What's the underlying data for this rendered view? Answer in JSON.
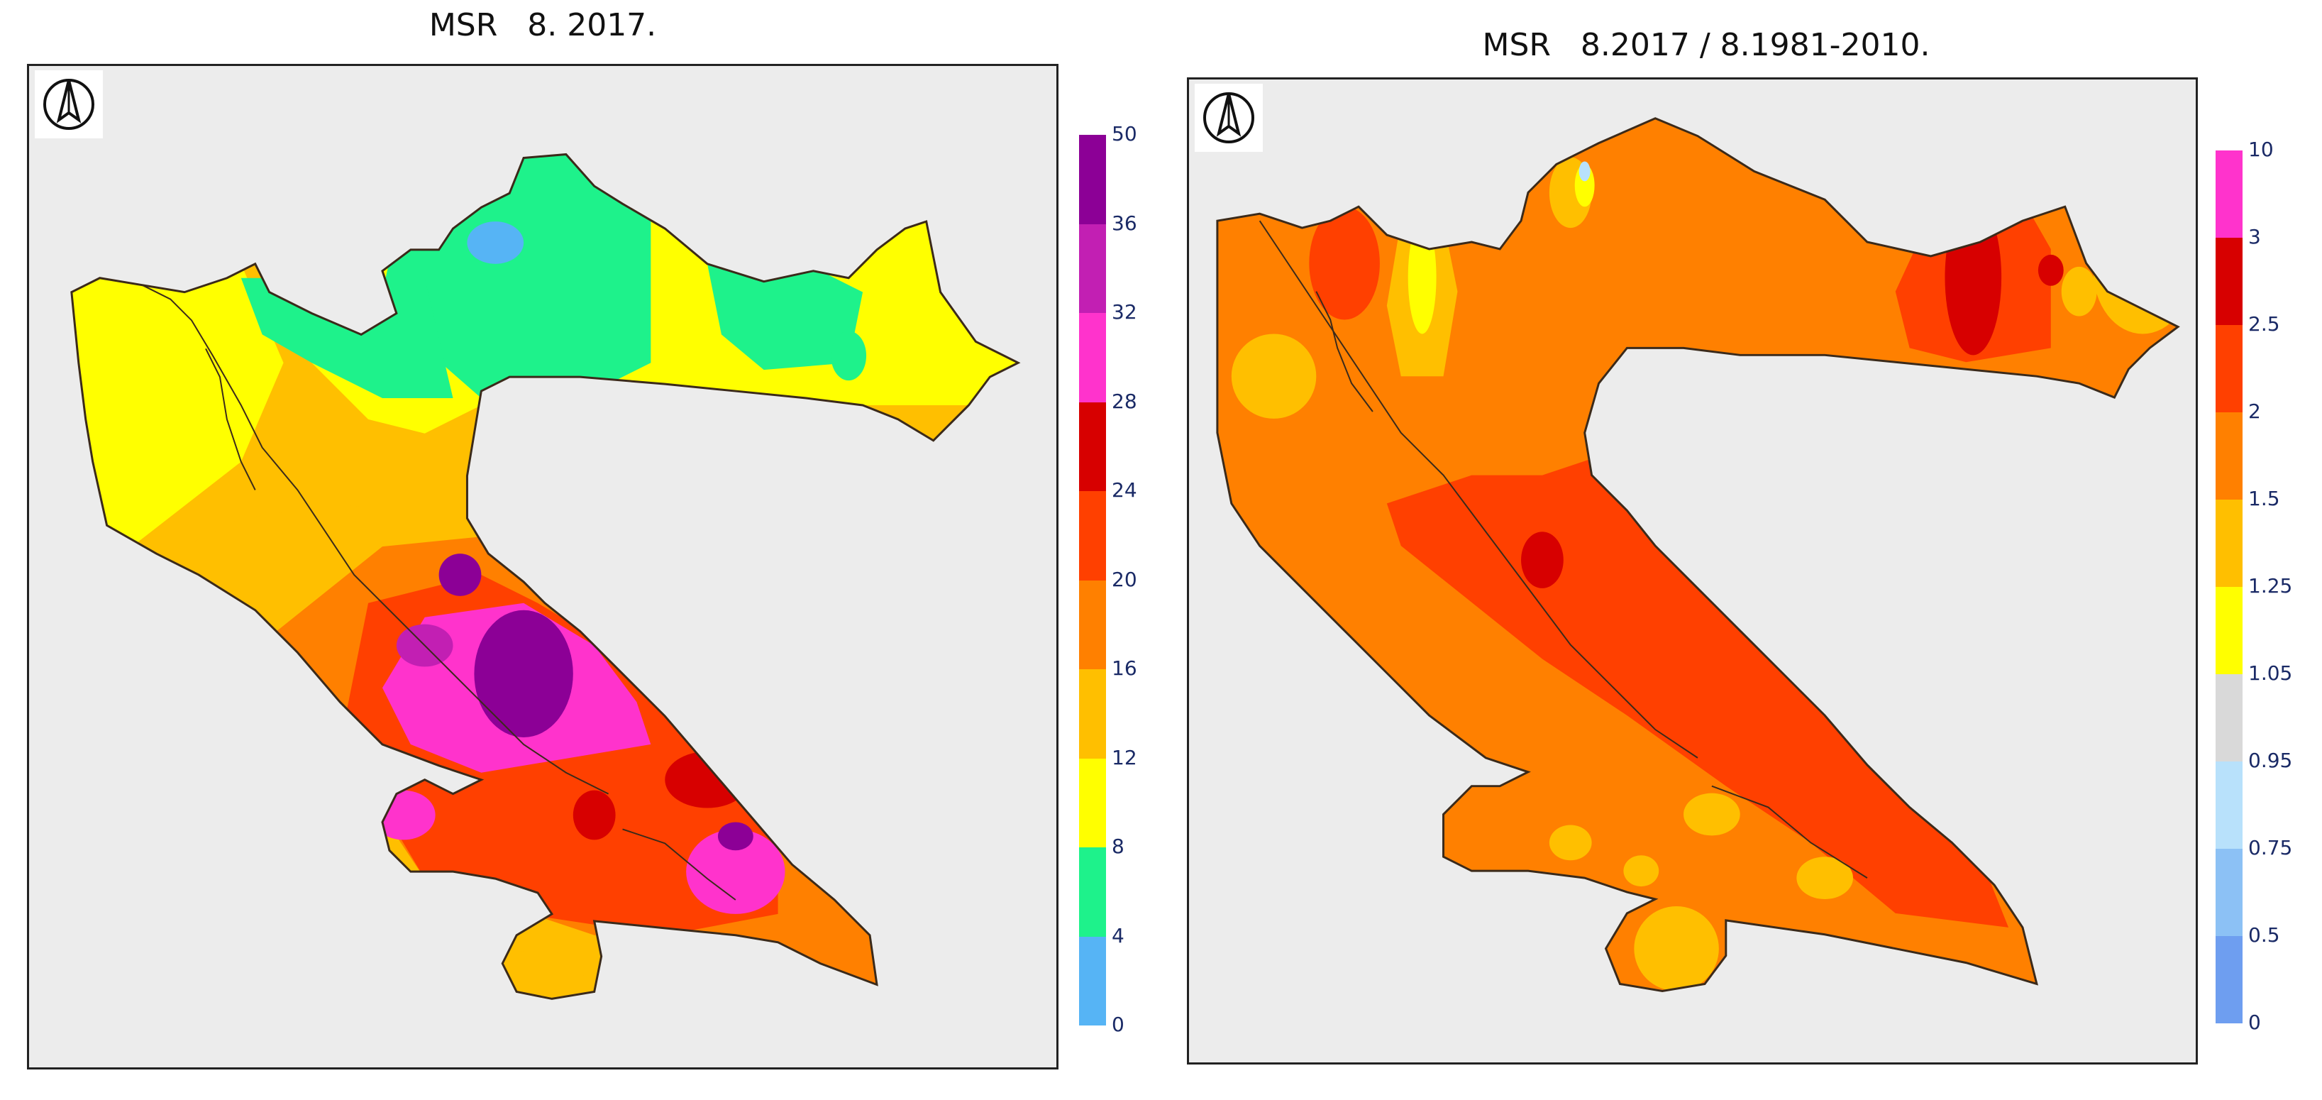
{
  "maps": [
    {
      "title": "MSR   8. 2017.",
      "legend": {
        "labels": [
          "0",
          "4",
          "8",
          "12",
          "16",
          "20",
          "24",
          "28",
          "32",
          "36",
          "50"
        ],
        "colors": [
          "#56b4f5",
          "#1ef28b",
          "#ffff00",
          "#ffbf00",
          "#ff8000",
          "#ff4000",
          "#d70000",
          "#ff33cc",
          "#c21fb3",
          "#8c0096"
        ]
      }
    },
    {
      "title": "MSR   8.2017 / 8.1981-2010.",
      "legend": {
        "labels": [
          "0",
          "0.5",
          "0.75",
          "0.95",
          "1.05",
          "1.25",
          "1.5",
          "2",
          "2.5",
          "3",
          "10"
        ],
        "colors": [
          "#6e9ef0",
          "#8cc1f5",
          "#b8e1fb",
          "#d9d9d9",
          "#ffff00",
          "#ffbf00",
          "#ff8000",
          "#ff4000",
          "#d70000",
          "#ff33cc"
        ]
      }
    }
  ],
  "icons": {
    "north_arrow": "north-arrow-icon"
  }
}
